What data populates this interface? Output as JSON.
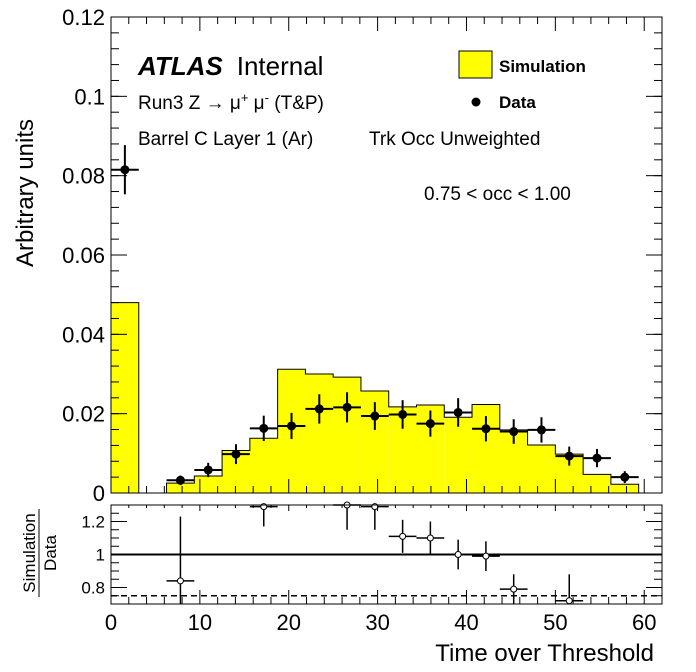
{
  "chart_data": [
    {
      "type": "histogram",
      "role": "main",
      "ylabel": "Arbitrary units",
      "xlabel": "Time over Threshold",
      "xlim": [
        0,
        62
      ],
      "ylim": [
        0,
        0.12
      ],
      "x_ticks": [
        "0",
        "10",
        "20",
        "30",
        "40",
        "50",
        "60"
      ],
      "y_ticks": [
        "0",
        "0.02",
        "0.04",
        "0.06",
        "0.08",
        "0.1",
        "0.12"
      ],
      "legend_position": "top-right",
      "legend": {
        "simulation": "Simulation",
        "data": "Data"
      },
      "series": [
        {
          "name": "Simulation",
          "color": "#ffff00",
          "bin_edges": [
            0,
            3.125,
            6.25,
            9.375,
            12.5,
            15.625,
            18.75,
            21.875,
            25,
            28.125,
            31.25,
            34.375,
            37.5,
            40.625,
            43.75,
            46.875,
            50,
            53.125,
            56.25,
            59.375
          ],
          "values": [
            0.048,
            0,
            0.0025,
            0.0043,
            0.0107,
            0.0138,
            0.0312,
            0.03,
            0.0292,
            0.0257,
            0.0217,
            0.0222,
            0.0191,
            0.0223,
            0.0159,
            0.0121,
            0.0098,
            0.0047,
            0.0022
          ]
        },
        {
          "name": "Data",
          "color": "#000000",
          "x": [
            1.5625,
            7.8125,
            10.9375,
            14.0625,
            17.1875,
            20.3125,
            23.4375,
            26.5625,
            29.6875,
            32.8125,
            35.9375,
            39.0625,
            42.1875,
            45.3125,
            48.4375,
            51.5625,
            54.6875,
            57.8125
          ],
          "y": [
            0.0815,
            0.0032,
            0.0058,
            0.0098,
            0.0163,
            0.0169,
            0.0212,
            0.0216,
            0.0194,
            0.0198,
            0.0175,
            0.0203,
            0.0162,
            0.0155,
            0.0159,
            0.0093,
            0.0088,
            0.004
          ],
          "yerr": [
            0.0062,
            0.0012,
            0.0018,
            0.0025,
            0.0032,
            0.0033,
            0.0037,
            0.0038,
            0.0035,
            0.0036,
            0.0033,
            0.0036,
            0.0032,
            0.0031,
            0.0032,
            0.0024,
            0.0023,
            0.0015
          ],
          "xerr": 1.5625
        }
      ],
      "annotations": {
        "atlas": "ATLAS",
        "atlas_suffix": "Internal",
        "process_prefix": "Run3 Z → μ",
        "process_sup1": "+",
        "process_mid": " μ",
        "process_sup2": "-",
        "process_suffix": " (T&P)",
        "region": "Barrel C Layer 1 (Ar)",
        "weighting": "Trk Occ Unweighted",
        "occupancy": "0.75 < occ < 1.00"
      }
    },
    {
      "type": "scatter",
      "role": "ratio",
      "ylabel_top": "Simulation",
      "ylabel_bottom": "Data",
      "xlim": [
        0,
        62
      ],
      "ylim": [
        0.7,
        1.3
      ],
      "y_ticks": [
        "0.8",
        "1",
        "1.2"
      ],
      "reference_line": 1.0,
      "dashed_line": 0.75,
      "x": [
        7.8125,
        17.1875,
        26.5625,
        29.6875,
        32.8125,
        35.9375,
        39.0625,
        42.1875,
        45.3125,
        51.5625
      ],
      "y": [
        0.84,
        1.29,
        1.3,
        1.29,
        1.11,
        1.1,
        1.0,
        0.99,
        0.79,
        0.72
      ],
      "yerr": [
        0.39,
        0.12,
        0.15,
        0.14,
        0.1,
        0.1,
        0.09,
        0.09,
        0.09,
        0.16
      ]
    }
  ]
}
